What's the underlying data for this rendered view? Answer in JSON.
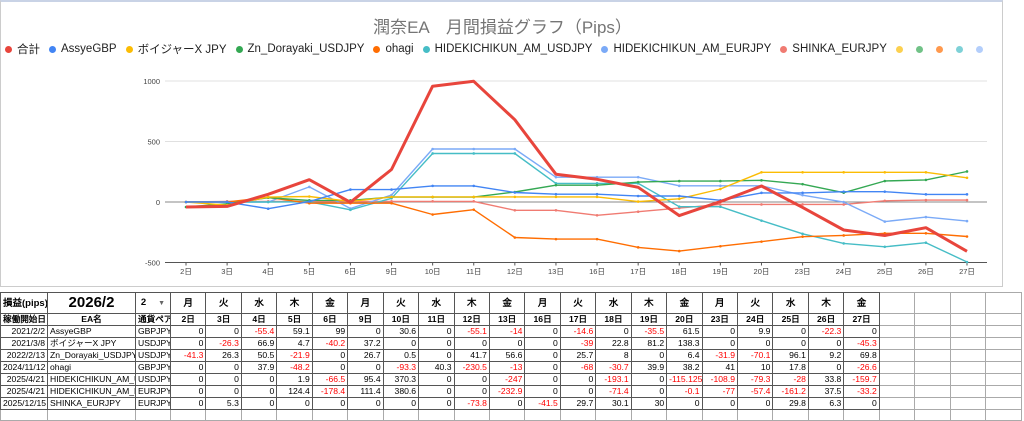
{
  "chart": {
    "title": "潤奈EA　月間損益グラフ（Pips）"
  },
  "chart_data": {
    "type": "line",
    "title": "潤奈EA　月間損益グラフ（Pips）",
    "xlabel": "",
    "ylabel": "",
    "categories": [
      "2日",
      "3日",
      "4日",
      "5日",
      "6日",
      "9日",
      "10日",
      "11日",
      "12日",
      "13日",
      "16日",
      "17日",
      "18日",
      "19日",
      "20日",
      "23日",
      "24日",
      "25日",
      "26日",
      "27日"
    ],
    "y_ticks": [
      -500,
      0,
      500,
      1000
    ],
    "ylim": [
      -500,
      1000
    ],
    "grid": true,
    "legend_placement": "top",
    "series": [
      {
        "name": "合計",
        "color": "#e8453c",
        "values": [
          -41.3,
          -36,
          63.9,
          183.9,
          -2.2,
          268.5,
          957.2,
          997.5,
          679.8,
          229.5,
          188,
          121.8,
          -112.5,
          3.1,
          132.3,
          -44.5,
          -231.4,
          -276.9,
          -212.4,
          -407.4
        ]
      },
      {
        "name": "AssyeGBP",
        "color": "#4285f4",
        "values": [
          0,
          0,
          -55.4,
          3.7,
          102.7,
          102.7,
          133.3,
          133.3,
          78.2,
          64.2,
          64.2,
          49.6,
          49.6,
          14.1,
          75.6,
          75.6,
          85.5,
          85.5,
          63.2,
          63.2
        ]
      },
      {
        "name": "ボイジャーX JPY",
        "color": "#fbbc04",
        "values": [
          0,
          -26.3,
          40.6,
          45.3,
          5.1,
          42.3,
          42.3,
          42.3,
          42.3,
          42.3,
          42.3,
          3.3,
          26.1,
          107.3,
          245.6,
          245.6,
          245.6,
          245.6,
          245.6,
          200.3
        ]
      },
      {
        "name": "Zn_Dorayaki_USDJPY",
        "color": "#34a853",
        "values": [
          -41.3,
          -15,
          35.5,
          13.6,
          13.6,
          40.3,
          40.8,
          40.8,
          82.5,
          139.1,
          139.1,
          164.8,
          172.8,
          172.8,
          179.2,
          147.3,
          77.2,
          173.3,
          182.5,
          252.3
        ]
      },
      {
        "name": "ohagi",
        "color": "#ff6d01",
        "values": [
          0,
          0,
          37.9,
          -10.3,
          -10.3,
          -10.3,
          -103.6,
          -63.3,
          -293.8,
          -306.8,
          -306.8,
          -374.8,
          -405.5,
          -365.6,
          -327.4,
          -286.4,
          -276.4,
          -258.6,
          -258.6,
          -285.2
        ]
      },
      {
        "name": "HIDEKICHIKUN_AM_USDJPY",
        "color": "#46bdc6",
        "values": [
          0,
          0,
          0,
          1.9,
          -64.6,
          30.8,
          401.1,
          401.1,
          401.1,
          154.1,
          154.1,
          154.1,
          -39,
          -39,
          -154.1,
          -263,
          -342.3,
          -370.3,
          -336.5,
          -496.2
        ]
      },
      {
        "name": "HIDEKICHIKUN_AM_EURJPY",
        "color": "#7baaf7",
        "values": [
          0,
          0,
          0,
          124.4,
          -54,
          57.4,
          438,
          438,
          438,
          205.1,
          205.1,
          205.1,
          133.7,
          133.7,
          133.6,
          56.6,
          -0.8,
          -162,
          -124.5,
          -157.7
        ]
      },
      {
        "name": "SHINKA_EURJPY",
        "color": "#f07b72",
        "values": [
          0,
          5.3,
          5.3,
          5.3,
          5.3,
          5.3,
          5.3,
          5.3,
          -68.5,
          -68.5,
          -110,
          -80.3,
          -50.2,
          -20.2,
          -20.2,
          -20.2,
          -20.2,
          9.6,
          15.9,
          15.9
        ]
      }
    ],
    "extra_legend_dot_colors": [
      "#fcd04f",
      "#71c287",
      "#ff994d",
      "#7ed1d7",
      "#b3cefb"
    ]
  },
  "table": {
    "corner_label": "損益(pips)",
    "month": "2026/2",
    "month_select": "2",
    "weekdays": [
      "月",
      "火",
      "水",
      "木",
      "金",
      "月",
      "火",
      "水",
      "木",
      "金",
      "月",
      "火",
      "水",
      "木",
      "金",
      "月",
      "火",
      "水",
      "木",
      "金"
    ],
    "col_headers": [
      "稼働開始日",
      "EA名",
      "通貨ペア"
    ],
    "dates": [
      "2日",
      "3日",
      "4日",
      "5日",
      "6日",
      "9日",
      "10日",
      "11日",
      "12日",
      "13日",
      "16日",
      "17日",
      "18日",
      "19日",
      "20日",
      "23日",
      "24日",
      "25日",
      "26日",
      "27日"
    ],
    "rows": [
      {
        "start": "2021/2/2",
        "ea": "AssyeGBP",
        "pair": "GBPJPY",
        "values": [
          "0",
          "0",
          "-55.4",
          "59.1",
          "99",
          "0",
          "30.6",
          "0",
          "-55.1",
          "-14",
          "0",
          "-14.6",
          "0",
          "-35.5",
          "61.5",
          "0",
          "9.9",
          "0",
          "-22.3",
          "0"
        ]
      },
      {
        "start": "2021/3/8",
        "ea": "ボイジャーX JPY",
        "pair": "USDJPY",
        "values": [
          "0",
          "-26.3",
          "66.9",
          "4.7",
          "-40.2",
          "37.2",
          "0",
          "0",
          "0",
          "0",
          "0",
          "-39",
          "22.8",
          "81.2",
          "138.3",
          "0",
          "0",
          "0",
          "0",
          "-45.3"
        ]
      },
      {
        "start": "2022/2/13",
        "ea": "Zn_Dorayaki_USDJPY",
        "pair": "USDJPY",
        "values": [
          "-41.3",
          "26.3",
          "50.5",
          "-21.9",
          "0",
          "26.7",
          "0.5",
          "0",
          "41.7",
          "56.6",
          "0",
          "25.7",
          "8",
          "0",
          "6.4",
          "-31.9",
          "-70.1",
          "96.1",
          "9.2",
          "69.8"
        ]
      },
      {
        "start": "2024/11/12",
        "ea": "ohagi",
        "pair": "GBPJPY",
        "values": [
          "0",
          "0",
          "37.9",
          "-48.2",
          "0",
          "0",
          "-93.3",
          "40.3",
          "-230.5",
          "-13",
          "0",
          "-68",
          "-30.7",
          "39.9",
          "38.2",
          "41",
          "10",
          "17.8",
          "0",
          "-26.6"
        ]
      },
      {
        "start": "2025/4/21",
        "ea": "HIDEKICHIKUN_AM_USDJPY",
        "pair": "USDJPY",
        "values": [
          "0",
          "0",
          "0",
          "1.9",
          "-66.5",
          "95.4",
          "370.3",
          "0",
          "0",
          "-247",
          "0",
          "0",
          "-193.1",
          "0",
          "-115.125",
          "-108.9",
          "-79.3",
          "-28",
          "33.8",
          "-159.7"
        ]
      },
      {
        "start": "2025/4/21",
        "ea": "HIDEKICHIKUN_AM_EURJPY",
        "pair": "EURJPY",
        "values": [
          "0",
          "0",
          "0",
          "124.4",
          "-178.4",
          "111.4",
          "380.6",
          "0",
          "0",
          "-232.9",
          "0",
          "0",
          "-71.4",
          "0",
          "-0.1",
          "-77",
          "-57.4",
          "-161.2",
          "37.5",
          "-33.2"
        ]
      },
      {
        "start": "2025/12/15",
        "ea": "SHINKA_EURJPY",
        "pair": "EURJPY",
        "values": [
          "0",
          "5.3",
          "0",
          "0",
          "0",
          "0",
          "0",
          "0",
          "-73.8",
          "0",
          "-41.5",
          "29.7",
          "30.1",
          "30",
          "0",
          "0",
          "0",
          "29.8",
          "6.3",
          "0"
        ]
      }
    ],
    "negative_color": "#ff0000"
  }
}
